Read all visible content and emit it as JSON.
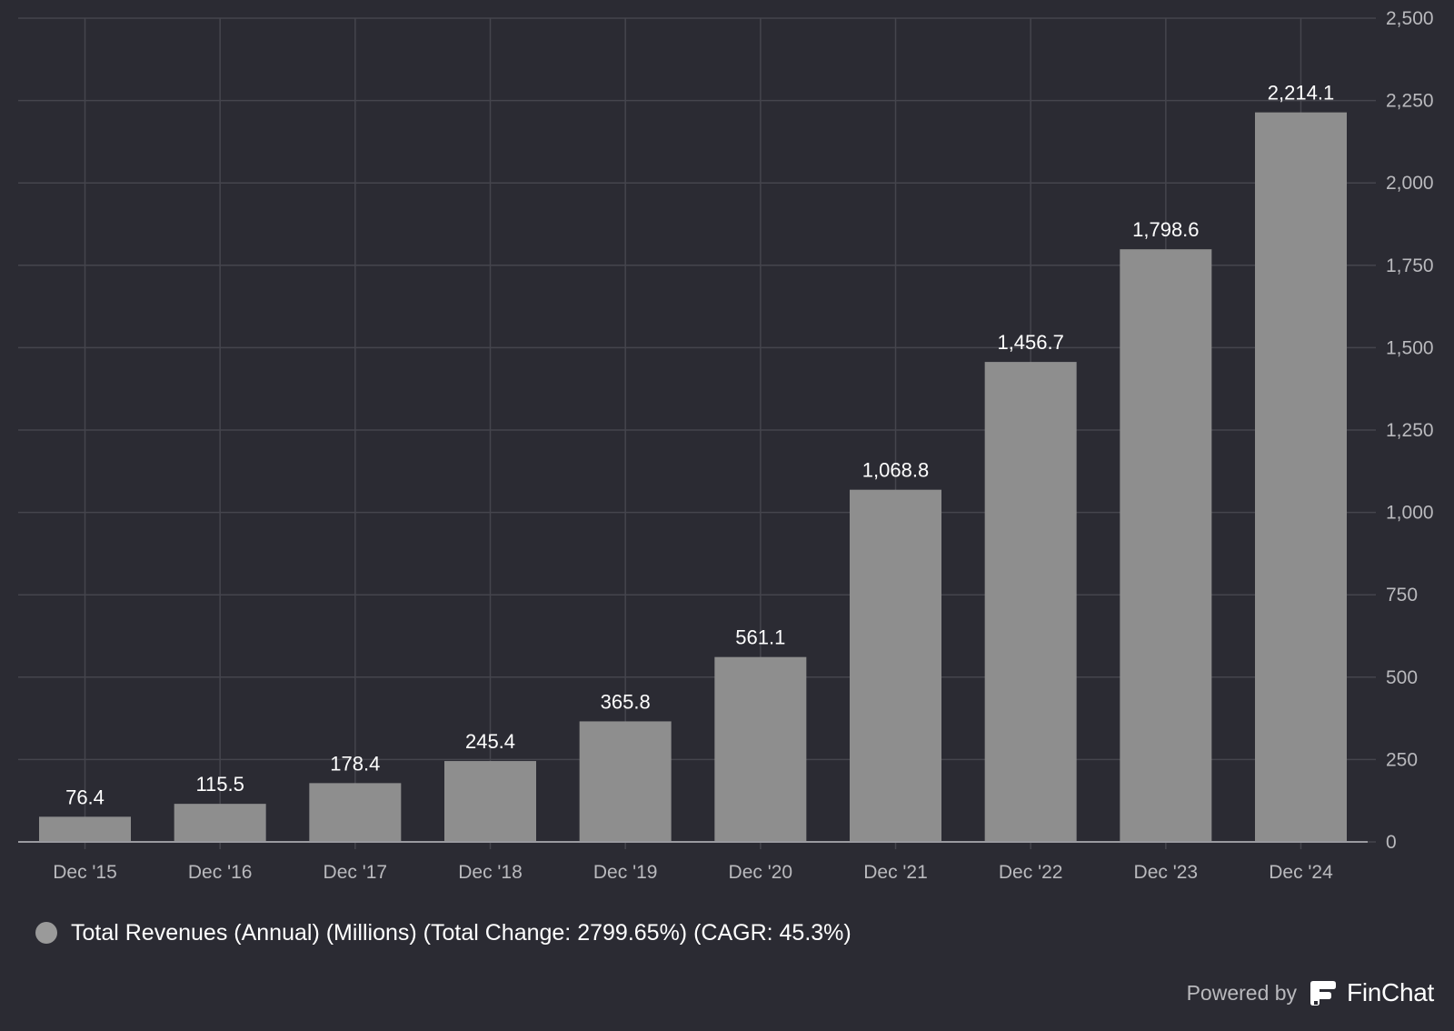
{
  "chart_data": {
    "type": "bar",
    "categories": [
      "Dec '15",
      "Dec '16",
      "Dec '17",
      "Dec '18",
      "Dec '19",
      "Dec '20",
      "Dec '21",
      "Dec '22",
      "Dec '23",
      "Dec '24"
    ],
    "values": [
      76.4,
      115.5,
      178.4,
      245.4,
      365.8,
      561.1,
      1068.8,
      1456.7,
      1798.6,
      2214.1
    ],
    "value_labels": [
      "76.4",
      "115.5",
      "178.4",
      "245.4",
      "365.8",
      "561.1",
      "1,068.8",
      "1,456.7",
      "1,798.6",
      "2,214.1"
    ],
    "series": [
      {
        "name": "Total Revenues (Annual) (Millions) (Total Change: 2799.65%) (CAGR: 45.3%)",
        "values": [
          76.4,
          115.5,
          178.4,
          245.4,
          365.8,
          561.1,
          1068.8,
          1456.7,
          1798.6,
          2214.1
        ]
      }
    ],
    "y_ticks": [
      0,
      250,
      500,
      750,
      1000,
      1250,
      1500,
      1750,
      2000,
      2250,
      2500
    ],
    "y_tick_labels": [
      "0",
      "250",
      "500",
      "750",
      "1,000",
      "1,250",
      "1,500",
      "1,750",
      "2,000",
      "2,250",
      "2,500"
    ],
    "ylim": [
      0,
      2500
    ],
    "y_axis_side": "right",
    "grid": true,
    "legend_position": "bottom-left",
    "title": "",
    "xlabel": "",
    "ylabel": ""
  },
  "colors": {
    "background": "#2b2b33",
    "bar": "#8e8e8e",
    "grid": "#45454d",
    "axis_line": "#9a9aa0",
    "tick_label": "#b9b9bd",
    "value_label": "#ffffff",
    "legend_dot": "#9a9a9a"
  },
  "legend": {
    "label": "Total Revenues (Annual) (Millions) (Total Change: 2799.65%) (CAGR: 45.3%)"
  },
  "branding": {
    "powered_by": "Powered by",
    "name": "FinChat",
    "logo_icon": "finchat-logo-icon"
  }
}
